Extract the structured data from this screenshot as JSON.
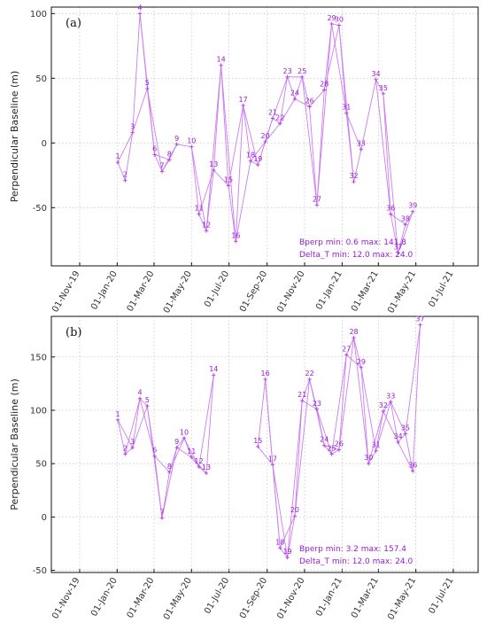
{
  "chart_data": [
    {
      "type": "scatter",
      "panel_label": "(a)",
      "ylabel": "Perpendicular Baseline (m)",
      "ylim": [
        -95,
        105
      ],
      "yticks": [
        -50,
        0,
        50,
        100
      ],
      "xticks": [
        "01-Nov-19",
        "01-Jan-20",
        "01-Mar-20",
        "01-May-20",
        "01-Jul-20",
        "01-Sep-20",
        "01-Nov-20",
        "01-Jan-21",
        "01-Mar-21",
        "01-May-21",
        "01-Jul-21"
      ],
      "stats": {
        "bperp": "Bperp  min:  0.6  max: 141.8",
        "delta_t": "Delta_T  min: 12.0  max:  24.0"
      },
      "points": [
        {
          "id": "1",
          "date": "2020-01-02",
          "y": -15
        },
        {
          "id": "2",
          "date": "2020-01-14",
          "y": -29
        },
        {
          "id": "3",
          "date": "2020-01-26",
          "y": 8
        },
        {
          "id": "4",
          "date": "2020-02-07",
          "y": 100
        },
        {
          "id": "5",
          "date": "2020-02-19",
          "y": 42
        },
        {
          "id": "6",
          "date": "2020-03-02",
          "y": -9
        },
        {
          "id": "7",
          "date": "2020-03-14",
          "y": -22
        },
        {
          "id": "8",
          "date": "2020-03-26",
          "y": -13
        },
        {
          "id": "9",
          "date": "2020-04-07",
          "y": -1
        },
        {
          "id": "10",
          "date": "2020-05-01",
          "y": -3
        },
        {
          "id": "11",
          "date": "2020-05-13",
          "y": -55
        },
        {
          "id": "12",
          "date": "2020-05-25",
          "y": -68
        },
        {
          "id": "13",
          "date": "2020-06-06",
          "y": -21
        },
        {
          "id": "14",
          "date": "2020-06-18",
          "y": 60
        },
        {
          "id": "15",
          "date": "2020-06-30",
          "y": -33
        },
        {
          "id": "16",
          "date": "2020-07-12",
          "y": -76
        },
        {
          "id": "17",
          "date": "2020-07-24",
          "y": 29
        },
        {
          "id": "18",
          "date": "2020-08-05",
          "y": -14
        },
        {
          "id": "19",
          "date": "2020-08-17",
          "y": -17
        },
        {
          "id": "20",
          "date": "2020-08-29",
          "y": 1
        },
        {
          "id": "21",
          "date": "2020-09-10",
          "y": 19
        },
        {
          "id": "22",
          "date": "2020-09-22",
          "y": 15
        },
        {
          "id": "23",
          "date": "2020-10-04",
          "y": 51
        },
        {
          "id": "24",
          "date": "2020-10-16",
          "y": 34
        },
        {
          "id": "25",
          "date": "2020-10-28",
          "y": 51
        },
        {
          "id": "26",
          "date": "2020-11-09",
          "y": 28
        },
        {
          "id": "27",
          "date": "2020-11-21",
          "y": -48
        },
        {
          "id": "28",
          "date": "2020-12-03",
          "y": 41
        },
        {
          "id": "29",
          "date": "2020-12-15",
          "y": 92
        },
        {
          "id": "30",
          "date": "2020-12-27",
          "y": 91
        },
        {
          "id": "31",
          "date": "2021-01-08",
          "y": 23
        },
        {
          "id": "32",
          "date": "2021-01-20",
          "y": -30
        },
        {
          "id": "33",
          "date": "2021-02-01",
          "y": -5
        },
        {
          "id": "34",
          "date": "2021-02-25",
          "y": 49
        },
        {
          "id": "35",
          "date": "2021-03-09",
          "y": 38
        },
        {
          "id": "36",
          "date": "2021-03-21",
          "y": -55
        },
        {
          "id": "37",
          "date": "2021-04-02",
          "y": -85
        },
        {
          "id": "38",
          "date": "2021-04-14",
          "y": -63
        },
        {
          "id": "39",
          "date": "2021-04-26",
          "y": -53
        }
      ],
      "edges": [
        [
          1,
          2
        ],
        [
          1,
          3
        ],
        [
          2,
          3
        ],
        [
          3,
          4
        ],
        [
          3,
          5
        ],
        [
          4,
          5
        ],
        [
          4,
          6
        ],
        [
          5,
          6
        ],
        [
          5,
          7
        ],
        [
          6,
          7
        ],
        [
          6,
          8
        ],
        [
          7,
          8
        ],
        [
          7,
          9
        ],
        [
          8,
          9
        ],
        [
          9,
          10
        ],
        [
          10,
          11
        ],
        [
          10,
          12
        ],
        [
          11,
          12
        ],
        [
          11,
          13
        ],
        [
          12,
          13
        ],
        [
          12,
          14
        ],
        [
          13,
          14
        ],
        [
          13,
          15
        ],
        [
          14,
          15
        ],
        [
          14,
          16
        ],
        [
          15,
          16
        ],
        [
          15,
          17
        ],
        [
          16,
          17
        ],
        [
          16,
          18
        ],
        [
          17,
          18
        ],
        [
          17,
          19
        ],
        [
          18,
          19
        ],
        [
          18,
          20
        ],
        [
          19,
          20
        ],
        [
          19,
          21
        ],
        [
          20,
          21
        ],
        [
          20,
          22
        ],
        [
          21,
          22
        ],
        [
          21,
          23
        ],
        [
          22,
          23
        ],
        [
          22,
          24
        ],
        [
          23,
          24
        ],
        [
          23,
          25
        ],
        [
          24,
          25
        ],
        [
          24,
          26
        ],
        [
          25,
          26
        ],
        [
          25,
          27
        ],
        [
          26,
          27
        ],
        [
          26,
          28
        ],
        [
          27,
          28
        ],
        [
          27,
          29
        ],
        [
          28,
          29
        ],
        [
          28,
          30
        ],
        [
          29,
          30
        ],
        [
          29,
          31
        ],
        [
          30,
          31
        ],
        [
          30,
          32
        ],
        [
          31,
          32
        ],
        [
          31,
          33
        ],
        [
          32,
          33
        ],
        [
          33,
          34
        ],
        [
          34,
          35
        ],
        [
          34,
          36
        ],
        [
          35,
          36
        ],
        [
          35,
          37
        ],
        [
          36,
          37
        ],
        [
          36,
          38
        ],
        [
          37,
          38
        ],
        [
          37,
          39
        ],
        [
          38,
          39
        ]
      ]
    },
    {
      "type": "scatter",
      "panel_label": "(b)",
      "ylabel": "Perpendicular Baseline (m)",
      "ylim": [
        -52,
        188
      ],
      "yticks": [
        -50,
        0,
        50,
        100,
        150
      ],
      "xticks": [
        "01-Nov-19",
        "01-Jan-20",
        "01-Mar-20",
        "01-May-20",
        "01-Jul-20",
        "01-Sep-20",
        "01-Nov-20",
        "01-Jan-21",
        "01-Mar-21",
        "01-May-21",
        "01-Jul-21"
      ],
      "stats": {
        "bperp": "Bperp  min:  3.2  max: 157.4",
        "delta_t": "Delta_T  min: 12.0  max:  24.0"
      },
      "points": [
        {
          "id": "1",
          "date": "2020-01-02",
          "y": 91
        },
        {
          "id": "2",
          "date": "2020-01-14",
          "y": 59
        },
        {
          "id": "3",
          "date": "2020-01-26",
          "y": 65
        },
        {
          "id": "4",
          "date": "2020-02-07",
          "y": 111
        },
        {
          "id": "5",
          "date": "2020-02-19",
          "y": 104
        },
        {
          "id": "6",
          "date": "2020-03-02",
          "y": 57
        },
        {
          "id": "7",
          "date": "2020-03-14",
          "y": -1
        },
        {
          "id": "8",
          "date": "2020-03-26",
          "y": 42
        },
        {
          "id": "9",
          "date": "2020-04-07",
          "y": 65
        },
        {
          "id": "10",
          "date": "2020-04-19",
          "y": 74
        },
        {
          "id": "11",
          "date": "2020-05-01",
          "y": 56
        },
        {
          "id": "12",
          "date": "2020-05-13",
          "y": 47
        },
        {
          "id": "13",
          "date": "2020-05-25",
          "y": 41
        },
        {
          "id": "14",
          "date": "2020-06-06",
          "y": 133
        },
        {
          "id": "15",
          "date": "2020-08-17",
          "y": 66
        },
        {
          "id": "16",
          "date": "2020-08-29",
          "y": 129
        },
        {
          "id": "17",
          "date": "2020-09-10",
          "y": 49
        },
        {
          "id": "18",
          "date": "2020-09-22",
          "y": -29
        },
        {
          "id": "19",
          "date": "2020-10-04",
          "y": -38
        },
        {
          "id": "20",
          "date": "2020-10-16",
          "y": 1
        },
        {
          "id": "21",
          "date": "2020-10-28",
          "y": 109
        },
        {
          "id": "22",
          "date": "2020-11-09",
          "y": 129
        },
        {
          "id": "23",
          "date": "2020-11-21",
          "y": 101
        },
        {
          "id": "24",
          "date": "2020-12-03",
          "y": 67
        },
        {
          "id": "25",
          "date": "2020-12-15",
          "y": 59
        },
        {
          "id": "26",
          "date": "2020-12-27",
          "y": 63
        },
        {
          "id": "27",
          "date": "2021-01-08",
          "y": 152
        },
        {
          "id": "28",
          "date": "2021-01-20",
          "y": 168
        },
        {
          "id": "29",
          "date": "2021-02-01",
          "y": 140
        },
        {
          "id": "30",
          "date": "2021-02-13",
          "y": 50
        },
        {
          "id": "31",
          "date": "2021-02-25",
          "y": 62
        },
        {
          "id": "32",
          "date": "2021-03-09",
          "y": 99
        },
        {
          "id": "33",
          "date": "2021-03-21",
          "y": 108
        },
        {
          "id": "34",
          "date": "2021-04-02",
          "y": 70
        },
        {
          "id": "35",
          "date": "2021-04-14",
          "y": 78
        },
        {
          "id": "36",
          "date": "2021-04-26",
          "y": 43
        },
        {
          "id": "37",
          "date": "2021-05-08",
          "y": 180
        }
      ],
      "edges": [
        [
          1,
          2
        ],
        [
          1,
          3
        ],
        [
          2,
          3
        ],
        [
          2,
          4
        ],
        [
          3,
          4
        ],
        [
          3,
          5
        ],
        [
          4,
          5
        ],
        [
          4,
          6
        ],
        [
          5,
          6
        ],
        [
          5,
          7
        ],
        [
          6,
          7
        ],
        [
          6,
          8
        ],
        [
          7,
          8
        ],
        [
          7,
          9
        ],
        [
          8,
          9
        ],
        [
          8,
          10
        ],
        [
          9,
          10
        ],
        [
          9,
          11
        ],
        [
          10,
          11
        ],
        [
          10,
          12
        ],
        [
          11,
          12
        ],
        [
          11,
          13
        ],
        [
          12,
          13
        ],
        [
          12,
          14
        ],
        [
          13,
          14
        ],
        [
          15,
          16
        ],
        [
          15,
          17
        ],
        [
          16,
          17
        ],
        [
          16,
          18
        ],
        [
          17,
          18
        ],
        [
          17,
          19
        ],
        [
          18,
          19
        ],
        [
          18,
          20
        ],
        [
          19,
          20
        ],
        [
          19,
          21
        ],
        [
          20,
          21
        ],
        [
          20,
          22
        ],
        [
          21,
          22
        ],
        [
          21,
          23
        ],
        [
          22,
          23
        ],
        [
          22,
          24
        ],
        [
          23,
          24
        ],
        [
          23,
          25
        ],
        [
          24,
          25
        ],
        [
          24,
          26
        ],
        [
          25,
          26
        ],
        [
          25,
          27
        ],
        [
          26,
          27
        ],
        [
          26,
          28
        ],
        [
          27,
          28
        ],
        [
          27,
          29
        ],
        [
          28,
          29
        ],
        [
          28,
          30
        ],
        [
          29,
          30
        ],
        [
          29,
          31
        ],
        [
          30,
          31
        ],
        [
          30,
          32
        ],
        [
          31,
          32
        ],
        [
          31,
          33
        ],
        [
          32,
          33
        ],
        [
          32,
          34
        ],
        [
          33,
          34
        ],
        [
          33,
          35
        ],
        [
          34,
          35
        ],
        [
          34,
          36
        ],
        [
          35,
          36
        ],
        [
          35,
          37
        ],
        [
          36,
          37
        ]
      ]
    }
  ]
}
